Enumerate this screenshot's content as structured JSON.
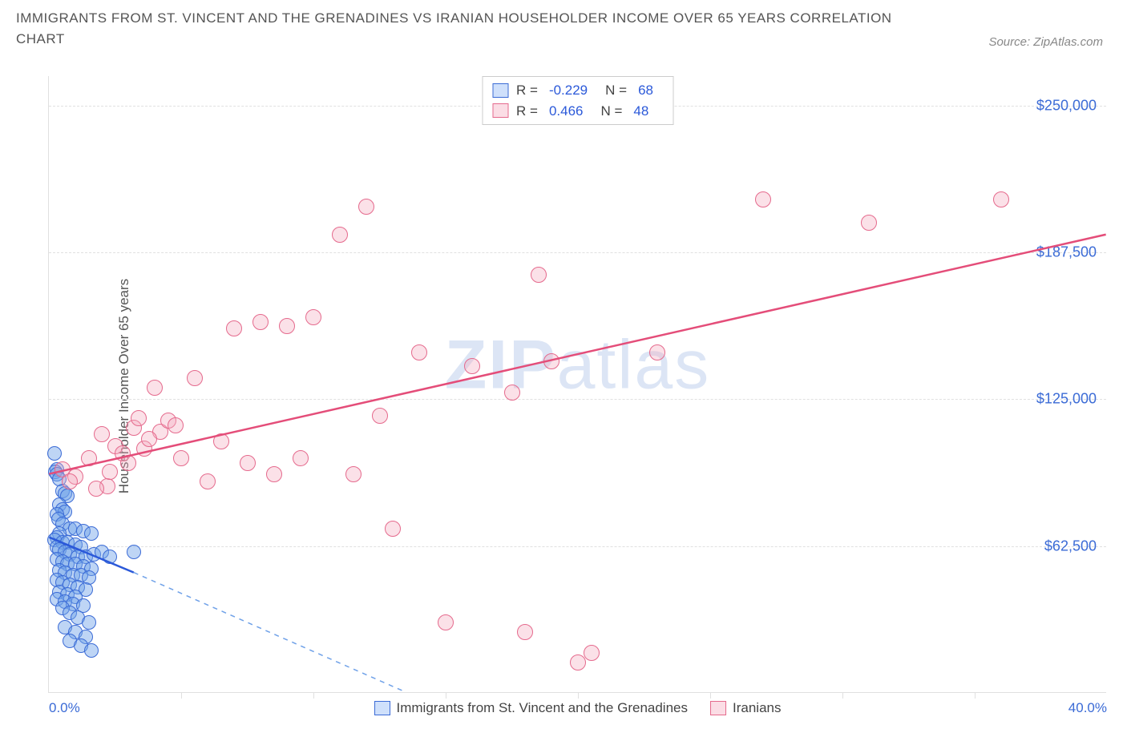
{
  "title": "IMMIGRANTS FROM ST. VINCENT AND THE GRENADINES VS IRANIAN HOUSEHOLDER INCOME OVER 65 YEARS CORRELATION CHART",
  "source_label": "Source: ZipAtlas.com",
  "watermark": {
    "bold": "ZIP",
    "rest": "atlas"
  },
  "chart": {
    "type": "scatter",
    "background_color": "#ffffff",
    "grid_color": "#e0e0e0",
    "axis_color": "#e0e0e0",
    "tick_label_color": "#3b6bd6",
    "axis_title_color": "#555555",
    "y_axis_title": "Householder Income Over 65 years",
    "xlim": [
      0,
      40
    ],
    "ylim": [
      0,
      262500
    ],
    "x_ticks": [
      {
        "v": 0,
        "label": "0.0%"
      },
      {
        "v": 40,
        "label": "40.0%"
      }
    ],
    "x_minor_ticks": [
      5,
      10,
      15,
      20,
      25,
      30,
      35
    ],
    "y_ticks": [
      {
        "v": 62500,
        "label": "$62,500"
      },
      {
        "v": 125000,
        "label": "$125,000"
      },
      {
        "v": 187500,
        "label": "$187,500"
      },
      {
        "v": 250000,
        "label": "$250,000"
      }
    ],
    "legend_top": {
      "rows": [
        {
          "swatch_fill": "#cfe0fb",
          "swatch_border": "#3b6bd6",
          "r_label": "R =",
          "r_value": "-0.229",
          "n_label": "N =",
          "n_value": "68"
        },
        {
          "swatch_fill": "#fbdde5",
          "swatch_border": "#e56a8d",
          "r_label": "R =",
          "r_value": "0.466",
          "n_label": "N =",
          "n_value": "48"
        }
      ]
    },
    "legend_bottom": {
      "items": [
        {
          "swatch_fill": "#cfe0fb",
          "swatch_border": "#3b6bd6",
          "label": "Immigrants from St. Vincent and the Grenadines"
        },
        {
          "swatch_fill": "#fbdde5",
          "swatch_border": "#e56a8d",
          "label": "Iranians"
        }
      ]
    },
    "series": [
      {
        "name": "st-vincent",
        "marker_radius": 9,
        "marker_fill": "#6fa1e8",
        "marker_fill_opacity": 0.45,
        "marker_stroke": "#3b6bd6",
        "trend": {
          "solid": {
            "x1": 0,
            "y1": 66000,
            "x2": 3.2,
            "y2": 51000,
            "color": "#2b59d9",
            "width": 2.5
          },
          "dashed_extend": {
            "x1": 3.2,
            "y1": 51000,
            "x2": 13.5,
            "y2": 0,
            "color": "#6fa1e8",
            "width": 1.5
          }
        },
        "points": [
          {
            "x": 0.2,
            "y": 102000
          },
          {
            "x": 0.3,
            "y": 95000
          },
          {
            "x": 0.25,
            "y": 94000
          },
          {
            "x": 0.3,
            "y": 93000
          },
          {
            "x": 0.4,
            "y": 91000
          },
          {
            "x": 0.5,
            "y": 86000
          },
          {
            "x": 0.6,
            "y": 85000
          },
          {
            "x": 0.7,
            "y": 84000
          },
          {
            "x": 0.4,
            "y": 80000
          },
          {
            "x": 0.5,
            "y": 78000
          },
          {
            "x": 0.6,
            "y": 77000
          },
          {
            "x": 0.3,
            "y": 76000
          },
          {
            "x": 0.35,
            "y": 74000
          },
          {
            "x": 0.5,
            "y": 72000
          },
          {
            "x": 0.8,
            "y": 70000
          },
          {
            "x": 1.0,
            "y": 70000
          },
          {
            "x": 1.3,
            "y": 69000
          },
          {
            "x": 1.6,
            "y": 68000
          },
          {
            "x": 0.4,
            "y": 68000
          },
          {
            "x": 0.3,
            "y": 66000
          },
          {
            "x": 0.2,
            "y": 65000
          },
          {
            "x": 0.5,
            "y": 64000
          },
          {
            "x": 0.7,
            "y": 64000
          },
          {
            "x": 1.0,
            "y": 63000
          },
          {
            "x": 1.2,
            "y": 62000
          },
          {
            "x": 0.3,
            "y": 62000
          },
          {
            "x": 0.4,
            "y": 61000
          },
          {
            "x": 0.6,
            "y": 60000
          },
          {
            "x": 0.8,
            "y": 59000
          },
          {
            "x": 1.1,
            "y": 58000
          },
          {
            "x": 1.4,
            "y": 58000
          },
          {
            "x": 1.7,
            "y": 59000
          },
          {
            "x": 2.0,
            "y": 60000
          },
          {
            "x": 2.3,
            "y": 58000
          },
          {
            "x": 0.3,
            "y": 57000
          },
          {
            "x": 0.5,
            "y": 56000
          },
          {
            "x": 0.7,
            "y": 55000
          },
          {
            "x": 1.0,
            "y": 55000
          },
          {
            "x": 1.3,
            "y": 54000
          },
          {
            "x": 1.6,
            "y": 53000
          },
          {
            "x": 0.4,
            "y": 52000
          },
          {
            "x": 0.6,
            "y": 51000
          },
          {
            "x": 0.9,
            "y": 50000
          },
          {
            "x": 1.2,
            "y": 50000
          },
          {
            "x": 1.5,
            "y": 49000
          },
          {
            "x": 0.3,
            "y": 48000
          },
          {
            "x": 0.5,
            "y": 47000
          },
          {
            "x": 0.8,
            "y": 46000
          },
          {
            "x": 1.1,
            "y": 45000
          },
          {
            "x": 1.4,
            "y": 44000
          },
          {
            "x": 0.4,
            "y": 43000
          },
          {
            "x": 0.7,
            "y": 42000
          },
          {
            "x": 1.0,
            "y": 41000
          },
          {
            "x": 0.3,
            "y": 40000
          },
          {
            "x": 0.6,
            "y": 39000
          },
          {
            "x": 0.9,
            "y": 38000
          },
          {
            "x": 1.3,
            "y": 37000
          },
          {
            "x": 0.5,
            "y": 36000
          },
          {
            "x": 0.8,
            "y": 34000
          },
          {
            "x": 1.1,
            "y": 32000
          },
          {
            "x": 1.5,
            "y": 30000
          },
          {
            "x": 0.6,
            "y": 28000
          },
          {
            "x": 1.0,
            "y": 26000
          },
          {
            "x": 1.4,
            "y": 24000
          },
          {
            "x": 0.8,
            "y": 22000
          },
          {
            "x": 1.2,
            "y": 20000
          },
          {
            "x": 1.6,
            "y": 18000
          },
          {
            "x": 3.2,
            "y": 60000
          }
        ]
      },
      {
        "name": "iranians",
        "marker_radius": 10,
        "marker_fill": "#f4a9be",
        "marker_fill_opacity": 0.35,
        "marker_stroke": "#e56a8d",
        "trend": {
          "solid": {
            "x1": 0,
            "y1": 93000,
            "x2": 40,
            "y2": 195000,
            "color": "#e44d79",
            "width": 2.5
          }
        },
        "points": [
          {
            "x": 0.5,
            "y": 95000
          },
          {
            "x": 1.0,
            "y": 92000
          },
          {
            "x": 0.8,
            "y": 90000
          },
          {
            "x": 1.5,
            "y": 100000
          },
          {
            "x": 2.0,
            "y": 110000
          },
          {
            "x": 2.2,
            "y": 88000
          },
          {
            "x": 2.5,
            "y": 105000
          },
          {
            "x": 2.8,
            "y": 102000
          },
          {
            "x": 3.0,
            "y": 98000
          },
          {
            "x": 3.2,
            "y": 113000
          },
          {
            "x": 3.4,
            "y": 117000
          },
          {
            "x": 3.6,
            "y": 104000
          },
          {
            "x": 4.0,
            "y": 130000
          },
          {
            "x": 4.2,
            "y": 111000
          },
          {
            "x": 4.5,
            "y": 116000
          },
          {
            "x": 4.8,
            "y": 114000
          },
          {
            "x": 5.5,
            "y": 134000
          },
          {
            "x": 6.0,
            "y": 90000
          },
          {
            "x": 6.5,
            "y": 107000
          },
          {
            "x": 7.0,
            "y": 155000
          },
          {
            "x": 7.5,
            "y": 98000
          },
          {
            "x": 8.0,
            "y": 158000
          },
          {
            "x": 8.5,
            "y": 93000
          },
          {
            "x": 9.0,
            "y": 156000
          },
          {
            "x": 9.5,
            "y": 100000
          },
          {
            "x": 10.0,
            "y": 160000
          },
          {
            "x": 11.0,
            "y": 195000
          },
          {
            "x": 11.5,
            "y": 93000
          },
          {
            "x": 12.5,
            "y": 118000
          },
          {
            "x": 12.0,
            "y": 207000
          },
          {
            "x": 13.0,
            "y": 70000
          },
          {
            "x": 14.0,
            "y": 145000
          },
          {
            "x": 15.0,
            "y": 30000
          },
          {
            "x": 16.0,
            "y": 139000
          },
          {
            "x": 17.5,
            "y": 128000
          },
          {
            "x": 18.0,
            "y": 26000
          },
          {
            "x": 18.5,
            "y": 178000
          },
          {
            "x": 19.0,
            "y": 141000
          },
          {
            "x": 20.0,
            "y": 13000
          },
          {
            "x": 20.5,
            "y": 17000
          },
          {
            "x": 23.0,
            "y": 145000
          },
          {
            "x": 27.0,
            "y": 210000
          },
          {
            "x": 31.0,
            "y": 200000
          },
          {
            "x": 36.0,
            "y": 210000
          },
          {
            "x": 3.8,
            "y": 108000
          },
          {
            "x": 5.0,
            "y": 100000
          },
          {
            "x": 2.3,
            "y": 94000
          },
          {
            "x": 1.8,
            "y": 87000
          }
        ]
      }
    ]
  }
}
